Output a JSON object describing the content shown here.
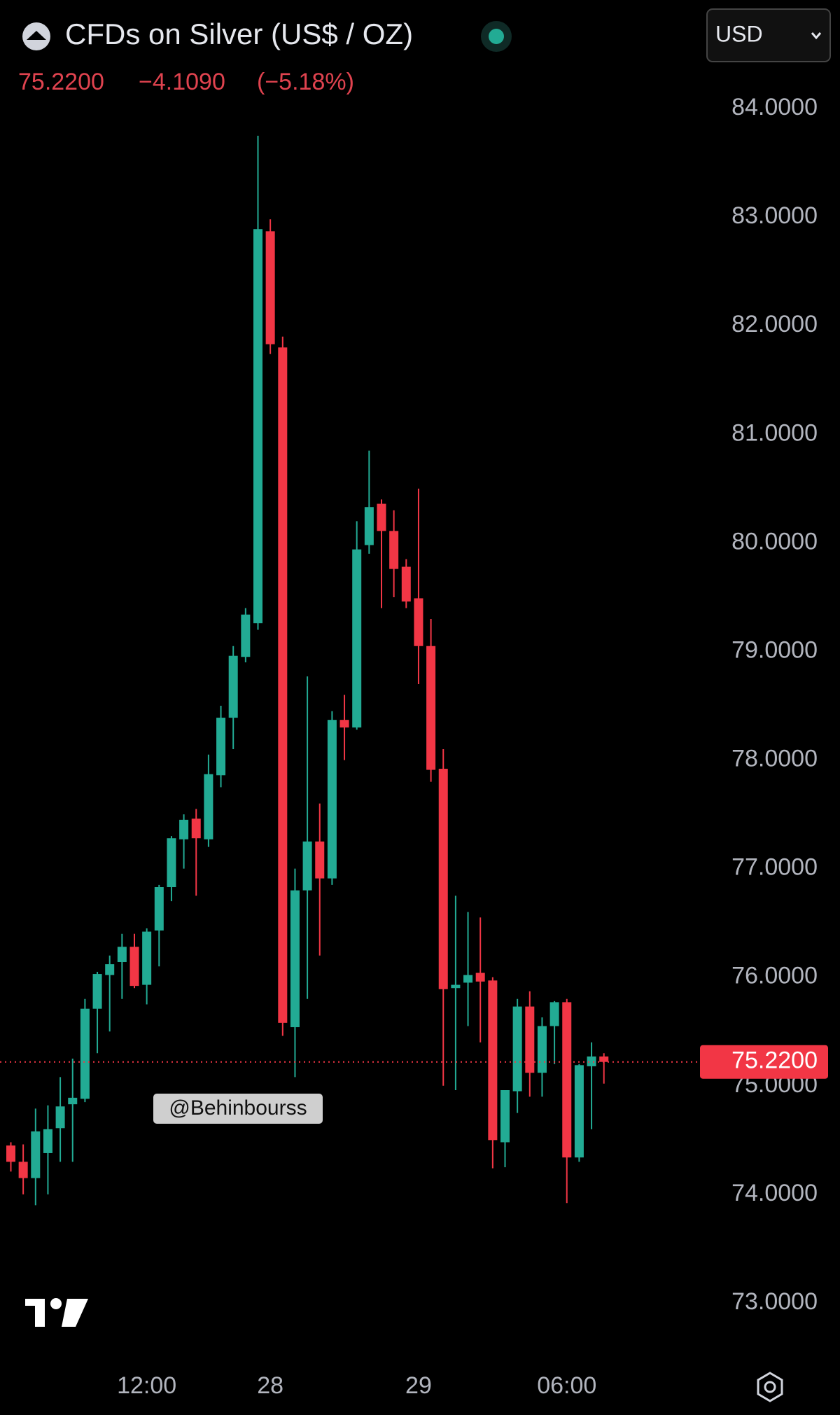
{
  "chart_data": {
    "type": "candlestick",
    "title": "CFDs on Silver (US$ / OZ)",
    "currency": "USD",
    "last_price": {
      "value": 75.22,
      "label": "75.2200"
    },
    "change": "−4.1090",
    "change_percent": "(−5.18%)",
    "watermark": "@Behinbourss",
    "up_color": "#22ab94",
    "down_color": "#f23645",
    "categories": [
      null,
      null,
      null,
      null,
      null,
      null,
      null,
      null,
      null,
      null,
      null,
      "12:00",
      null,
      null,
      null,
      null,
      null,
      null,
      null,
      null,
      null,
      "28",
      null,
      null,
      null,
      null,
      null,
      null,
      null,
      null,
      null,
      null,
      null,
      "29",
      null,
      null,
      null,
      null,
      null,
      null,
      null,
      null,
      null,
      null,
      null,
      "06:00",
      null,
      null,
      null
    ],
    "open": [
      74.45,
      74.3,
      74.15,
      74.38,
      74.61,
      74.83,
      74.88,
      75.71,
      76.02,
      76.14,
      76.28,
      75.93,
      76.43,
      76.83,
      77.27,
      77.46,
      77.27,
      77.86,
      78.39,
      78.95,
      79.26,
      82.87,
      81.8,
      75.54,
      76.8,
      77.25,
      76.91,
      78.37,
      78.3,
      79.98,
      80.36,
      80.11,
      79.78,
      79.49,
      79.05,
      77.92,
      75.9,
      75.95,
      76.04,
      75.97,
      74.48,
      74.95,
      75.73,
      75.12,
      75.55,
      75.77,
      74.34,
      75.18,
      75.27
    ],
    "high": [
      74.48,
      74.46,
      74.79,
      74.82,
      75.08,
      75.25,
      75.8,
      76.05,
      76.2,
      76.4,
      76.4,
      76.45,
      76.85,
      77.3,
      77.5,
      77.55,
      78.05,
      78.5,
      79.05,
      79.4,
      83.75,
      82.98,
      81.9,
      77.0,
      78.77,
      77.6,
      78.45,
      78.6,
      80.2,
      80.85,
      80.4,
      80.3,
      79.85,
      80.5,
      79.3,
      78.1,
      76.75,
      76.6,
      76.55,
      76.0,
      74.9,
      75.8,
      75.87,
      75.63,
      75.78,
      75.8,
      75.2,
      75.4,
      75.3
    ],
    "low": [
      74.21,
      74.0,
      73.9,
      74.0,
      74.3,
      74.3,
      74.85,
      75.3,
      75.5,
      75.8,
      75.9,
      75.75,
      76.1,
      76.7,
      77.0,
      76.75,
      77.2,
      77.75,
      78.1,
      78.9,
      79.2,
      81.74,
      75.46,
      75.08,
      75.8,
      76.2,
      76.85,
      78.0,
      78.28,
      79.9,
      79.4,
      79.5,
      79.4,
      78.7,
      77.8,
      75.0,
      74.96,
      75.55,
      75.4,
      74.24,
      74.25,
      74.75,
      74.9,
      74.9,
      75.2,
      73.92,
      74.3,
      74.6,
      75.02
    ],
    "close": [
      74.3,
      74.15,
      74.58,
      74.6,
      74.81,
      74.89,
      75.71,
      76.03,
      76.12,
      76.28,
      75.92,
      76.42,
      76.83,
      77.28,
      77.45,
      77.28,
      77.87,
      78.39,
      78.96,
      79.34,
      82.89,
      81.83,
      75.58,
      76.8,
      77.25,
      76.91,
      78.37,
      78.3,
      79.94,
      80.33,
      80.11,
      79.76,
      79.46,
      79.05,
      77.91,
      75.89,
      75.93,
      76.02,
      75.96,
      74.5,
      74.96,
      75.73,
      75.12,
      75.55,
      75.77,
      74.34,
      75.19,
      75.27,
      75.22
    ],
    "ylim": [
      72.6,
      85.0
    ],
    "yticks": [
      {
        "value": 84,
        "label": "84.0000"
      },
      {
        "value": 83,
        "label": "83.0000"
      },
      {
        "value": 82,
        "label": "82.0000"
      },
      {
        "value": 81,
        "label": "81.0000"
      },
      {
        "value": 80,
        "label": "80.0000"
      },
      {
        "value": 79,
        "label": "79.0000"
      },
      {
        "value": 78,
        "label": "78.0000"
      },
      {
        "value": 77,
        "label": "77.0000"
      },
      {
        "value": 76,
        "label": "76.0000"
      },
      {
        "value": 75,
        "label": "75.0000"
      },
      {
        "value": 74,
        "label": "74.0000"
      },
      {
        "value": 73,
        "label": "73.0000"
      }
    ]
  }
}
